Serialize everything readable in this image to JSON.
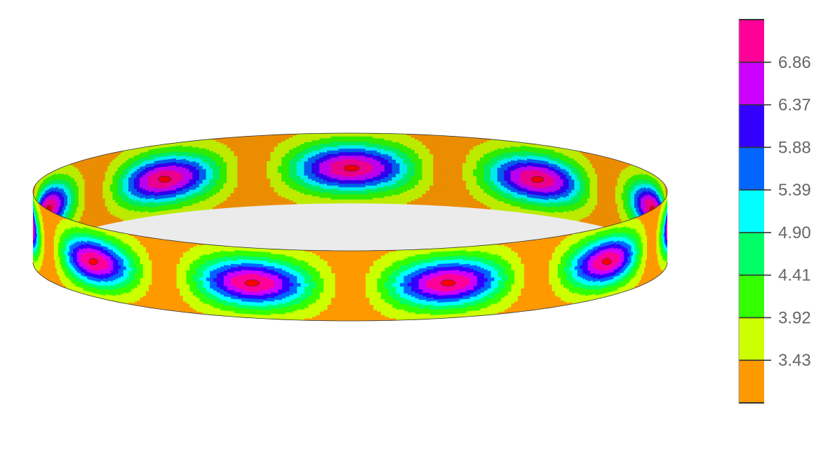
{
  "chart_data": {
    "type": "heatmap",
    "subtype": "3d-contour-band",
    "colorbar": {
      "tick_labels": [
        "3.43",
        "3.92",
        "4.41",
        "4.90",
        "5.39",
        "5.88",
        "6.37",
        "6.86"
      ],
      "tick_values": [
        3.43,
        3.92,
        4.41,
        4.9,
        5.39,
        5.88,
        6.37,
        6.86
      ],
      "band_colors": [
        "#FF9900",
        "#CCFF00",
        "#33FF00",
        "#00FF66",
        "#00FFFF",
        "#0066FF",
        "#3300FF",
        "#CC00FF",
        "#FF0099"
      ],
      "range": [
        2.94,
        7.35
      ]
    },
    "peak_color": "#FF0000",
    "peaks_visible_front": 5,
    "peaks_visible_back": 5,
    "outline_color": "#333333"
  }
}
